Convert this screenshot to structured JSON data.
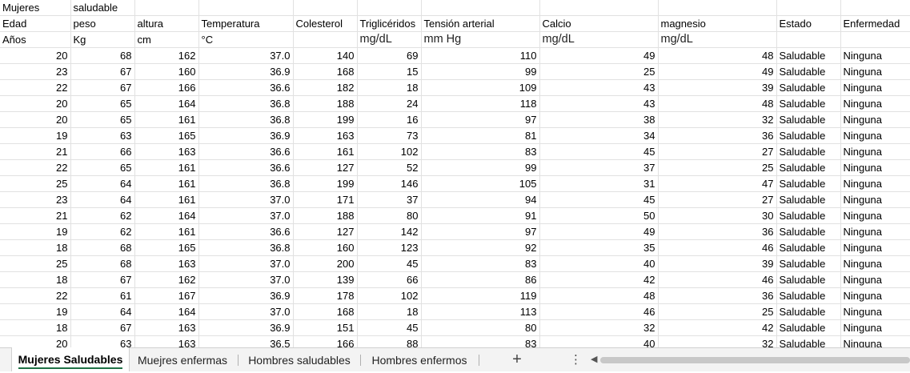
{
  "header_rows": [
    [
      "Mujeres",
      "saludable",
      "",
      "",
      "",
      "",
      "",
      "",
      "",
      "",
      ""
    ],
    [
      "Edad",
      "peso",
      "altura",
      "Temperatura",
      "Colesterol",
      "Triglicéridos",
      "Tensión arterial",
      "Calcio",
      "magnesio",
      "Estado",
      "Enfermedad"
    ],
    [
      "Años",
      "Kg",
      "cm",
      "°C",
      "",
      "mg/dL",
      "mm Hg",
      "mg/dL",
      "mg/dL",
      "",
      ""
    ]
  ],
  "data_rows": [
    [
      "20",
      "68",
      "162",
      "37.0",
      "140",
      "69",
      "110",
      "49",
      "48",
      "Saludable",
      "Ninguna"
    ],
    [
      "23",
      "67",
      "160",
      "36.9",
      "168",
      "15",
      "99",
      "25",
      "49",
      "Saludable",
      "Ninguna"
    ],
    [
      "22",
      "67",
      "166",
      "36.6",
      "182",
      "18",
      "109",
      "43",
      "39",
      "Saludable",
      "Ninguna"
    ],
    [
      "20",
      "65",
      "164",
      "36.8",
      "188",
      "24",
      "118",
      "43",
      "48",
      "Saludable",
      "Ninguna"
    ],
    [
      "20",
      "65",
      "161",
      "36.8",
      "199",
      "16",
      "97",
      "38",
      "32",
      "Saludable",
      "Ninguna"
    ],
    [
      "19",
      "63",
      "165",
      "36.9",
      "163",
      "73",
      "81",
      "34",
      "36",
      "Saludable",
      "Ninguna"
    ],
    [
      "21",
      "66",
      "163",
      "36.6",
      "161",
      "102",
      "83",
      "45",
      "27",
      "Saludable",
      "Ninguna"
    ],
    [
      "22",
      "65",
      "161",
      "36.6",
      "127",
      "52",
      "99",
      "37",
      "25",
      "Saludable",
      "Ninguna"
    ],
    [
      "25",
      "64",
      "161",
      "36.8",
      "199",
      "146",
      "105",
      "31",
      "47",
      "Saludable",
      "Ninguna"
    ],
    [
      "23",
      "64",
      "161",
      "37.0",
      "171",
      "37",
      "94",
      "45",
      "27",
      "Saludable",
      "Ninguna"
    ],
    [
      "21",
      "62",
      "164",
      "37.0",
      "188",
      "80",
      "91",
      "50",
      "30",
      "Saludable",
      "Ninguna"
    ],
    [
      "19",
      "62",
      "161",
      "36.6",
      "127",
      "142",
      "97",
      "49",
      "36",
      "Saludable",
      "Ninguna"
    ],
    [
      "18",
      "68",
      "165",
      "36.8",
      "160",
      "123",
      "92",
      "35",
      "46",
      "Saludable",
      "Ninguna"
    ],
    [
      "25",
      "68",
      "163",
      "37.0",
      "200",
      "45",
      "83",
      "40",
      "39",
      "Saludable",
      "Ninguna"
    ],
    [
      "18",
      "67",
      "162",
      "37.0",
      "139",
      "66",
      "86",
      "42",
      "46",
      "Saludable",
      "Ninguna"
    ],
    [
      "22",
      "61",
      "167",
      "36.9",
      "178",
      "102",
      "119",
      "48",
      "36",
      "Saludable",
      "Ninguna"
    ],
    [
      "19",
      "64",
      "164",
      "37.0",
      "168",
      "18",
      "113",
      "46",
      "25",
      "Saludable",
      "Ninguna"
    ],
    [
      "18",
      "67",
      "163",
      "36.9",
      "151",
      "45",
      "80",
      "32",
      "42",
      "Saludable",
      "Ninguna"
    ],
    [
      "20",
      "63",
      "163",
      "36.5",
      "166",
      "88",
      "83",
      "40",
      "32",
      "Saludable",
      "Ninguna"
    ]
  ],
  "sheet_tabs": [
    {
      "label": "Mujeres Saludables",
      "active": true
    },
    {
      "label": "Muejres enfermas",
      "active": false
    },
    {
      "label": "Hombres saludables",
      "active": false
    },
    {
      "label": "Hombres enfermos",
      "active": false
    }
  ],
  "icons": {
    "add_sheet": "plus-icon",
    "more_options": "vertical-ellipsis-icon",
    "scroll_left": "triangle-left-icon"
  },
  "colors": {
    "active_tab_accent": "#1e7145",
    "gridline": "#e1e1e1",
    "sheetbar_bg": "#f3f3f3"
  }
}
